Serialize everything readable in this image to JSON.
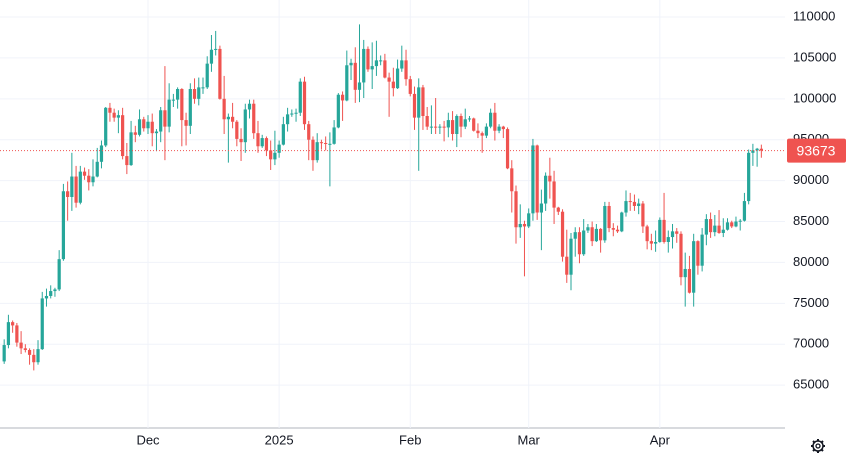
{
  "chart_data": {
    "type": "candlestick",
    "categories": [
      null,
      null,
      null,
      null,
      null,
      null,
      null,
      null,
      null,
      null,
      null,
      null,
      null,
      null,
      null,
      null,
      null,
      null,
      null,
      null,
      null,
      null,
      null,
      null,
      null,
      null,
      null,
      null,
      null,
      null,
      null,
      null,
      null,
      null,
      "Dec",
      null,
      null,
      null,
      null,
      null,
      null,
      null,
      null,
      null,
      null,
      null,
      null,
      null,
      null,
      null,
      null,
      null,
      null,
      null,
      null,
      null,
      null,
      null,
      null,
      null,
      null,
      null,
      null,
      null,
      null,
      "2025",
      null,
      null,
      null,
      null,
      null,
      null,
      null,
      null,
      null,
      null,
      null,
      null,
      null,
      null,
      null,
      null,
      null,
      null,
      null,
      null,
      null,
      null,
      null,
      null,
      null,
      null,
      null,
      null,
      null,
      null,
      "Feb",
      null,
      null,
      null,
      null,
      null,
      null,
      null,
      null,
      null,
      null,
      null,
      null,
      null,
      null,
      null,
      null,
      null,
      null,
      null,
      null,
      null,
      null,
      null,
      null,
      null,
      null,
      null,
      "Mar",
      null,
      null,
      null,
      null,
      null,
      null,
      null,
      null,
      null,
      null,
      null,
      null,
      null,
      null,
      null,
      null,
      null,
      null,
      null,
      null,
      null,
      null,
      null,
      null,
      null,
      null,
      null,
      null,
      null,
      null,
      "Apr",
      null,
      null,
      null,
      null,
      null,
      null,
      null,
      null,
      null,
      null,
      null,
      null,
      null,
      null,
      null,
      null,
      null,
      null,
      null,
      null,
      null,
      null,
      null,
      null
    ],
    "open": [
      67900,
      69900,
      72700,
      72300,
      70200,
      69500,
      69300,
      68700,
      67800,
      69400,
      75600,
      75900,
      76500,
      76700,
      80400,
      88700,
      88000,
      90500,
      87300,
      91100,
      90600,
      89800,
      90500,
      92300,
      94300,
      98900,
      98300,
      97700,
      98000,
      93000,
      91900,
      95900,
      95600,
      97500,
      96400,
      97200,
      95800,
      96000,
      98600,
      96600,
      99900,
      99900,
      101200,
      97400,
      96700,
      101200,
      100000,
      101400,
      101400,
      104300,
      106000,
      106100,
      100000,
      97500,
      97800,
      97200,
      95100,
      94700,
      98700,
      99400,
      95800,
      94200,
      95200,
      93700,
      92600,
      93400,
      94400,
      96900,
      98100,
      98200,
      98300,
      102100,
      96900,
      95000,
      92500,
      94700,
      94600,
      94500,
      94500,
      96500,
      100500,
      99800,
      104100,
      104400,
      101100,
      102000,
      106100,
      103600,
      104000,
      104700,
      104700,
      102600,
      102100,
      101300,
      103700,
      104700,
      102400,
      100600,
      97700,
      101400,
      97900,
      96600,
      96600,
      96500,
      96600,
      96500,
      97400,
      95700,
      97900,
      96600,
      97500,
      97600,
      96100,
      95800,
      95500,
      96600,
      98300,
      96100,
      96600,
      96300,
      91500,
      88700,
      84300,
      84700,
      84400,
      86000,
      94300,
      86100,
      87200,
      90600,
      89900,
      86700,
      86200,
      80700,
      78500,
      82900,
      83700,
      81000,
      83900,
      84300,
      82600,
      84100,
      82700,
      86900,
      84200,
      84000,
      83800,
      86100,
      87500,
      87400,
      86900,
      87200,
      84400,
      82600,
      82300,
      82500,
      85200,
      82500,
      83100,
      83800,
      83500,
      78200,
      79200,
      76300,
      82600,
      79600,
      83400,
      85300,
      83700,
      84500,
      83600,
      84000,
      84900,
      84400,
      85000,
      85100,
      87500,
      93400,
      93700,
      93900
    ],
    "high": [
      70600,
      73600,
      72900,
      72600,
      71600,
      70000,
      69500,
      69400,
      70500,
      76400,
      76800,
      77200,
      76900,
      81500,
      89600,
      89900,
      93400,
      91800,
      91800,
      91600,
      91400,
      92600,
      94000,
      94900,
      99000,
      99500,
      98800,
      98600,
      98900,
      94600,
      97300,
      96700,
      98700,
      97800,
      98000,
      98200,
      96300,
      99000,
      104000,
      101900,
      100600,
      101400,
      101300,
      98300,
      101900,
      102500,
      102600,
      102600,
      105200,
      107800,
      108300,
      106500,
      102800,
      98200,
      99500,
      97400,
      96400,
      99400,
      99900,
      99900,
      97300,
      95600,
      95400,
      94900,
      96100,
      94900,
      97800,
      98900,
      98700,
      98800,
      102500,
      102700,
      97300,
      95400,
      95800,
      95000,
      95400,
      95900,
      97400,
      100700,
      100900,
      105900,
      104900,
      106300,
      109100,
      107200,
      106400,
      106900,
      107100,
      105300,
      105500,
      103200,
      103800,
      104800,
      106500,
      106000,
      102800,
      101500,
      102500,
      101700,
      99000,
      99200,
      100100,
      96900,
      97300,
      98300,
      98500,
      98100,
      98200,
      98800,
      97900,
      97700,
      97000,
      96000,
      97000,
      98800,
      99500,
      96900,
      96700,
      96500,
      92500,
      89400,
      87100,
      85100,
      86600,
      95100,
      94400,
      88900,
      91000,
      92800,
      91200,
      86800,
      86500,
      84000,
      83600,
      84300,
      84300,
      85300,
      84700,
      85000,
      84700,
      84200,
      87400,
      87400,
      84800,
      84500,
      86200,
      88800,
      88500,
      88300,
      87800,
      87500,
      84600,
      83500,
      83900,
      85500,
      88500,
      83900,
      84700,
      84200,
      83800,
      81200,
      80800,
      83500,
      82700,
      84200,
      85900,
      86100,
      85800,
      86400,
      85400,
      85400,
      85100,
      85600,
      85300,
      88500,
      93800,
      94500,
      94000,
      94400
    ],
    "low": [
      67600,
      69500,
      71400,
      69700,
      68800,
      69000,
      67500,
      66800,
      67500,
      69300,
      74600,
      75600,
      75800,
      76500,
      80200,
      85100,
      86300,
      86700,
      87100,
      90100,
      88800,
      89300,
      90400,
      91500,
      94100,
      97200,
      97200,
      95800,
      92600,
      90800,
      91800,
      94700,
      95400,
      96000,
      95700,
      94200,
      93600,
      94700,
      92500,
      95900,
      99000,
      98800,
      94200,
      94300,
      95700,
      99400,
      99200,
      100600,
      101200,
      103300,
      105300,
      99900,
      95700,
      92200,
      96400,
      94200,
      92400,
      93400,
      97600,
      95100,
      93400,
      94000,
      93000,
      91300,
      91900,
      92800,
      94300,
      96000,
      97800,
      97200,
      97900,
      96200,
      92500,
      91200,
      92200,
      93800,
      93700,
      89300,
      94400,
      96400,
      97300,
      99700,
      102300,
      99500,
      99600,
      100100,
      103300,
      101200,
      102800,
      104100,
      102500,
      97800,
      100300,
      101200,
      103300,
      101600,
      100300,
      96200,
      91200,
      96200,
      96200,
      95700,
      95700,
      95700,
      94800,
      95300,
      94900,
      94100,
      95300,
      96300,
      97200,
      96000,
      95200,
      93400,
      95200,
      96400,
      94900,
      95800,
      95200,
      91400,
      86100,
      82300,
      83000,
      78300,
      84200,
      85100,
      85200,
      81500,
      86300,
      87800,
      84700,
      85800,
      80100,
      77500,
      76600,
      80700,
      79900,
      80800,
      83600,
      82000,
      82500,
      81200,
      82400,
      83700,
      83200,
      83600,
      83700,
      85600,
      86300,
      86300,
      85900,
      83600,
      81600,
      81500,
      81300,
      82400,
      82300,
      81200,
      81700,
      82400,
      77200,
      74600,
      76200,
      74600,
      78500,
      78900,
      82100,
      83000,
      83200,
      83500,
      83100,
      83900,
      84200,
      84300,
      83900,
      85000,
      87100,
      91800,
      91700,
      92800
    ],
    "close": [
      69900,
      72700,
      72300,
      70200,
      69500,
      69300,
      68700,
      67800,
      69400,
      75600,
      75900,
      76500,
      76700,
      80400,
      88700,
      88000,
      90500,
      87300,
      91100,
      90600,
      89800,
      90500,
      92300,
      94300,
      98900,
      98300,
      97700,
      98000,
      93000,
      91900,
      95900,
      95600,
      97500,
      96400,
      97200,
      95800,
      96000,
      98600,
      96600,
      99900,
      99900,
      101200,
      97400,
      96700,
      101200,
      100000,
      101400,
      101400,
      104300,
      106000,
      106100,
      100000,
      97500,
      97800,
      97200,
      95100,
      94700,
      98700,
      99400,
      95800,
      94200,
      95200,
      93700,
      92600,
      93400,
      94400,
      96900,
      98100,
      98200,
      98300,
      102100,
      96900,
      95000,
      92500,
      94700,
      94600,
      94500,
      94500,
      96500,
      100500,
      99800,
      104100,
      104400,
      101100,
      102000,
      106100,
      103600,
      104000,
      104700,
      104700,
      102600,
      102100,
      101300,
      103700,
      104700,
      102400,
      100600,
      97700,
      101400,
      97900,
      96600,
      96600,
      96500,
      96600,
      96500,
      97400,
      95700,
      97900,
      96600,
      97500,
      97600,
      96100,
      95800,
      95500,
      96600,
      98300,
      96100,
      96600,
      96300,
      91500,
      88700,
      84300,
      84700,
      84400,
      86000,
      94300,
      86100,
      87200,
      90600,
      89900,
      86700,
      86200,
      80700,
      78500,
      82900,
      83700,
      81000,
      83900,
      84300,
      82600,
      84100,
      82700,
      86900,
      84200,
      84000,
      83800,
      86100,
      87500,
      87400,
      86900,
      87200,
      84400,
      82600,
      82300,
      82500,
      85200,
      82500,
      83100,
      83800,
      83500,
      78200,
      79200,
      76300,
      82600,
      79600,
      83400,
      85300,
      83700,
      84500,
      83600,
      84000,
      84900,
      84400,
      85000,
      85100,
      87500,
      93400,
      93700,
      93900,
      93673
    ],
    "up_color": "#26a69a",
    "down_color": "#ef5350",
    "last_price": 93673,
    "ylim": [
      59760,
      112080
    ],
    "yticks": [
      65000,
      70000,
      75000,
      80000,
      85000,
      90000,
      95000,
      100000,
      105000,
      110000
    ],
    "grid": true
  }
}
